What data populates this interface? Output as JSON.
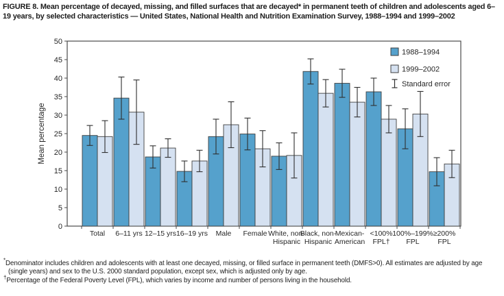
{
  "figure": {
    "title": "FIGURE 8. Mean percentage of decayed, missing, and filled surfaces that are decayed* in permanent teeth of children and adolescents aged 6–19 years, by selected characteristics — United States, National Health and Nutrition Examination Survey, 1988–1994 and 1999–2002"
  },
  "chart_data": {
    "type": "bar",
    "title": "",
    "xlabel": "",
    "ylabel": "Mean percentage",
    "ylim": [
      0,
      50
    ],
    "ytick_step": 5,
    "grid": false,
    "legend_position": "top-right-inside",
    "standard_error_label": "Standard error",
    "categories": [
      "Total",
      "6–11 yrs",
      "12–15 yrs",
      "16–19 yrs",
      "Male",
      "Female",
      "White, non-\nHispanic",
      "Black, non-\nHispanic",
      "Mexican-\nAmerican",
      "<100%\nFPL†",
      "100%–199%\nFPL",
      "≥200%\nFPL"
    ],
    "series": [
      {
        "name": "1988–1994",
        "color": "#55a1cc",
        "values": [
          24.5,
          34.6,
          18.7,
          14.8,
          24.2,
          24.9,
          18.9,
          41.8,
          38.6,
          36.3,
          26.3,
          14.7
        ],
        "standard_errors": [
          2.7,
          5.7,
          3.0,
          2.8,
          4.7,
          4.3,
          3.6,
          3.4,
          3.8,
          3.7,
          5.4,
          3.8
        ]
      },
      {
        "name": "1999–2002",
        "color": "#d5e1f1",
        "values": [
          24.2,
          30.8,
          21.1,
          17.6,
          27.4,
          20.9,
          19.1,
          35.9,
          33.5,
          28.9,
          30.3,
          16.8
        ],
        "standard_errors": [
          4.3,
          8.7,
          2.5,
          2.9,
          6.2,
          4.9,
          6.1,
          3.7,
          4.0,
          3.7,
          6.1,
          3.7
        ]
      }
    ]
  },
  "footnotes": [
    {
      "marker": "*",
      "text": "Denominator includes children and adolescents with at least one decayed, missing, or filled surface in permanent teeth (DMFS>0). All estimates are adjusted by age (single years) and sex to the U.S. 2000 standard population, except sex, which is adjusted only by age."
    },
    {
      "marker": "†",
      "text": "Percentage of the Federal Poverty Level (FPL), which varies by income and number of persons living in the household."
    }
  ],
  "colors": {
    "axis": "#4a4a4a",
    "bar_outline": "#3f3f3f",
    "error_bar": "#2e2e2e",
    "text": "#262626"
  }
}
